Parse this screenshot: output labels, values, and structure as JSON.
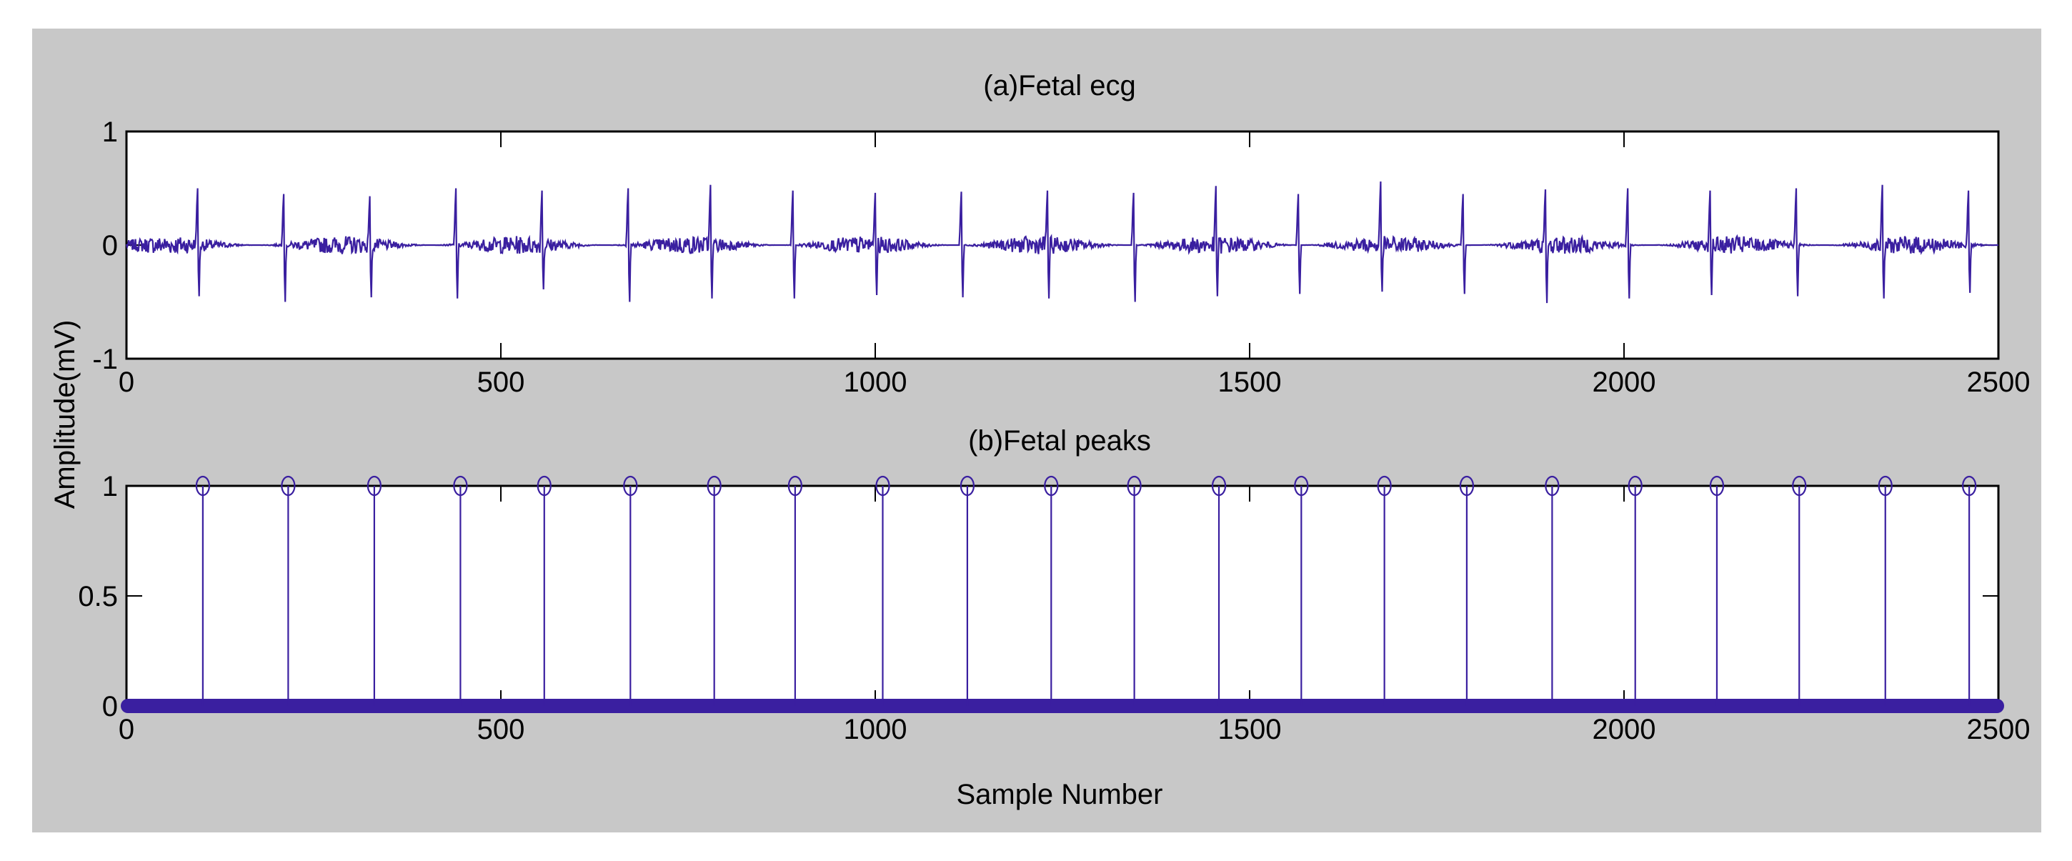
{
  "figure": {
    "background_color": "#c8c8c8",
    "axes_background": "#ffffff",
    "line_color": "#3a1fa0",
    "ylabel": "Amplitude(mV)",
    "xlabel": "Sample Number"
  },
  "chart_data": [
    {
      "type": "line",
      "title": "(a)Fetal ecg",
      "xlim": [
        0,
        2500
      ],
      "ylim": [
        -1,
        1
      ],
      "xticks": [
        0,
        500,
        1000,
        1500,
        2000,
        2500
      ],
      "yticks": [
        -1,
        0,
        1
      ],
      "grid": false,
      "series": [
        {
          "description_of_values": "fetal ECG signal, baseline noise near 0 with sharp R-peaks at listed samples",
          "peak_samples": [
            95,
            210,
            325,
            440,
            555,
            670,
            780,
            890,
            1000,
            1115,
            1230,
            1345,
            1455,
            1565,
            1675,
            1785,
            1895,
            2005,
            2115,
            2230,
            2345,
            2460
          ],
          "peak_max": [
            0.5,
            0.45,
            0.43,
            0.5,
            0.48,
            0.5,
            0.53,
            0.48,
            0.46,
            0.47,
            0.48,
            0.46,
            0.52,
            0.45,
            0.56,
            0.45,
            0.49,
            0.5,
            0.48,
            0.5,
            0.53,
            0.48
          ],
          "peak_min": [
            -0.45,
            -0.5,
            -0.46,
            -0.47,
            -0.39,
            -0.5,
            -0.47,
            -0.47,
            -0.44,
            -0.46,
            -0.47,
            -0.5,
            -0.45,
            -0.43,
            -0.41,
            -0.43,
            -0.51,
            -0.47,
            -0.44,
            -0.45,
            -0.47,
            -0.42
          ],
          "noise_amplitude": 0.08
        }
      ]
    },
    {
      "type": "stem",
      "title": "(b)Fetal peaks",
      "xlim": [
        0,
        2500
      ],
      "ylim": [
        0,
        1
      ],
      "xticks": [
        0,
        500,
        1000,
        1500,
        2000,
        2500
      ],
      "yticks": [
        0,
        0.5,
        1
      ],
      "grid": false,
      "series": [
        {
          "x": [
            102,
            216,
            331,
            446,
            558,
            673,
            785,
            893,
            1010,
            1123,
            1235,
            1346,
            1459,
            1569,
            1680,
            1790,
            1904,
            2015,
            2124,
            2234,
            2349,
            2461
          ],
          "y": 1,
          "baseline_value": 0
        }
      ]
    }
  ]
}
